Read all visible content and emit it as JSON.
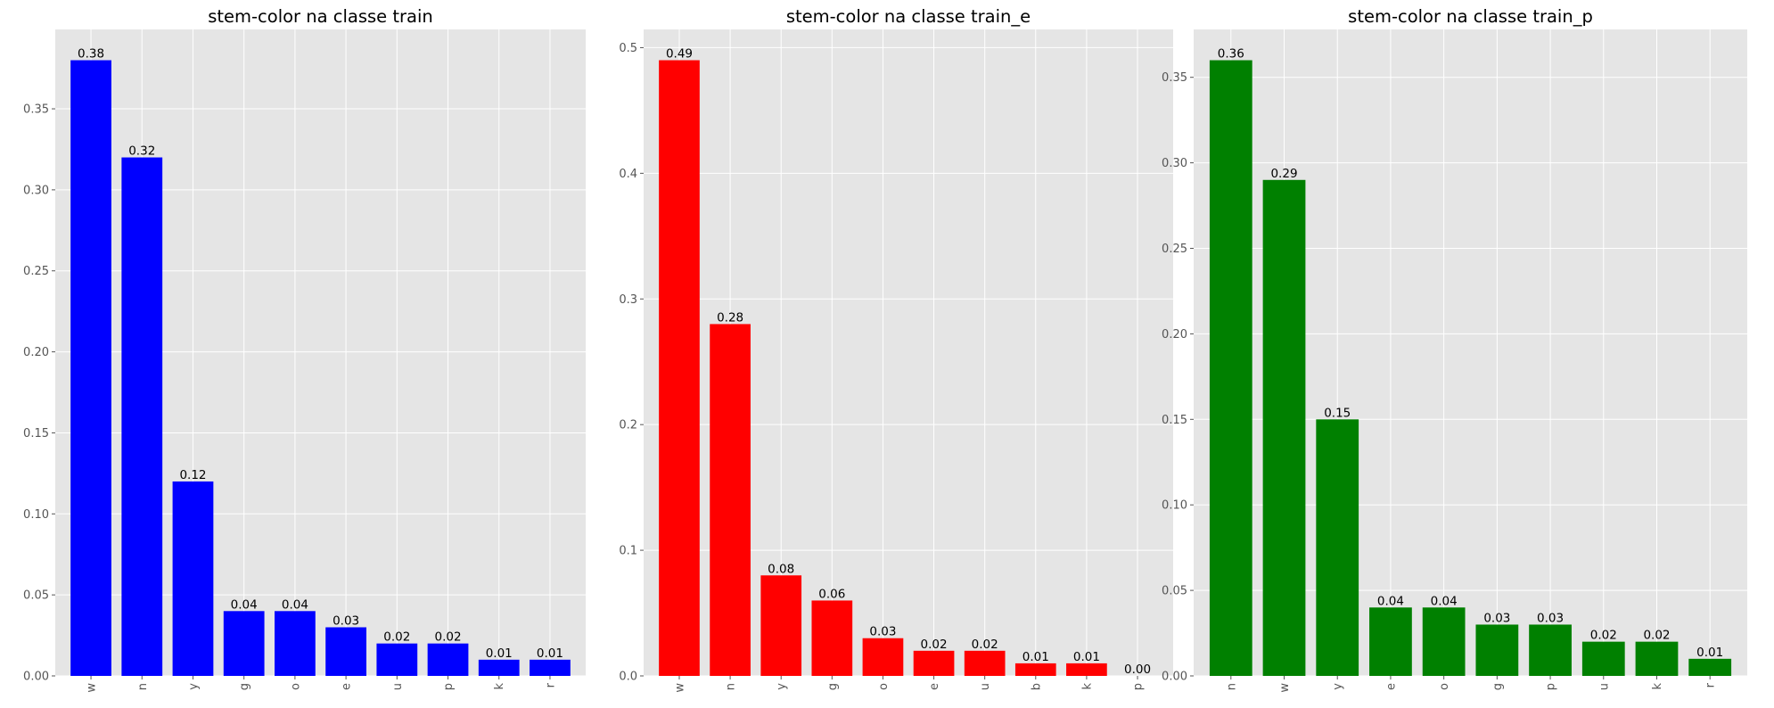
{
  "chart_data": [
    {
      "type": "bar",
      "title": "stem-color na classe train",
      "categories": [
        "w",
        "n",
        "y",
        "g",
        "o",
        "e",
        "u",
        "p",
        "k",
        "r"
      ],
      "values": [
        0.38,
        0.32,
        0.12,
        0.04,
        0.04,
        0.03,
        0.02,
        0.02,
        0.01,
        0.01
      ],
      "value_labels": [
        "0.38",
        "0.32",
        "0.12",
        "0.04",
        "0.04",
        "0.03",
        "0.02",
        "0.02",
        "0.01",
        "0.01"
      ],
      "color": "#0000ff",
      "ylim": [
        0,
        0.399
      ],
      "yticks": [
        0.0,
        0.05,
        0.1,
        0.15,
        0.2,
        0.25,
        0.3,
        0.35
      ],
      "ytick_labels": [
        "0.00",
        "0.05",
        "0.10",
        "0.15",
        "0.20",
        "0.25",
        "0.30",
        "0.35"
      ],
      "grid": true,
      "xtick_rotation": "vertical"
    },
    {
      "type": "bar",
      "title": "stem-color na classe train_e",
      "categories": [
        "w",
        "n",
        "y",
        "g",
        "o",
        "e",
        "u",
        "b",
        "k",
        "p"
      ],
      "values": [
        0.49,
        0.28,
        0.08,
        0.06,
        0.03,
        0.02,
        0.02,
        0.01,
        0.01,
        0.0
      ],
      "value_labels": [
        "0.49",
        "0.28",
        "0.08",
        "0.06",
        "0.03",
        "0.02",
        "0.02",
        "0.01",
        "0.01",
        "0.00"
      ],
      "color": "#ff0000",
      "ylim": [
        0,
        0.5145
      ],
      "yticks": [
        0.0,
        0.1,
        0.2,
        0.3,
        0.4,
        0.5
      ],
      "ytick_labels": [
        "0.0",
        "0.1",
        "0.2",
        "0.3",
        "0.4",
        "0.5"
      ],
      "grid": true,
      "xtick_rotation": "vertical"
    },
    {
      "type": "bar",
      "title": "stem-color na classe train_p",
      "categories": [
        "n",
        "w",
        "y",
        "e",
        "o",
        "g",
        "p",
        "u",
        "k",
        "r"
      ],
      "values": [
        0.36,
        0.29,
        0.15,
        0.04,
        0.04,
        0.03,
        0.03,
        0.02,
        0.02,
        0.01
      ],
      "value_labels": [
        "0.36",
        "0.29",
        "0.15",
        "0.04",
        "0.04",
        "0.03",
        "0.03",
        "0.02",
        "0.02",
        "0.01"
      ],
      "color": "#008000",
      "ylim": [
        0,
        0.378
      ],
      "yticks": [
        0.0,
        0.05,
        0.1,
        0.15,
        0.2,
        0.25,
        0.3,
        0.35
      ],
      "ytick_labels": [
        "0.00",
        "0.05",
        "0.10",
        "0.15",
        "0.20",
        "0.25",
        "0.30",
        "0.35"
      ],
      "grid": true,
      "xtick_rotation": "vertical"
    }
  ]
}
